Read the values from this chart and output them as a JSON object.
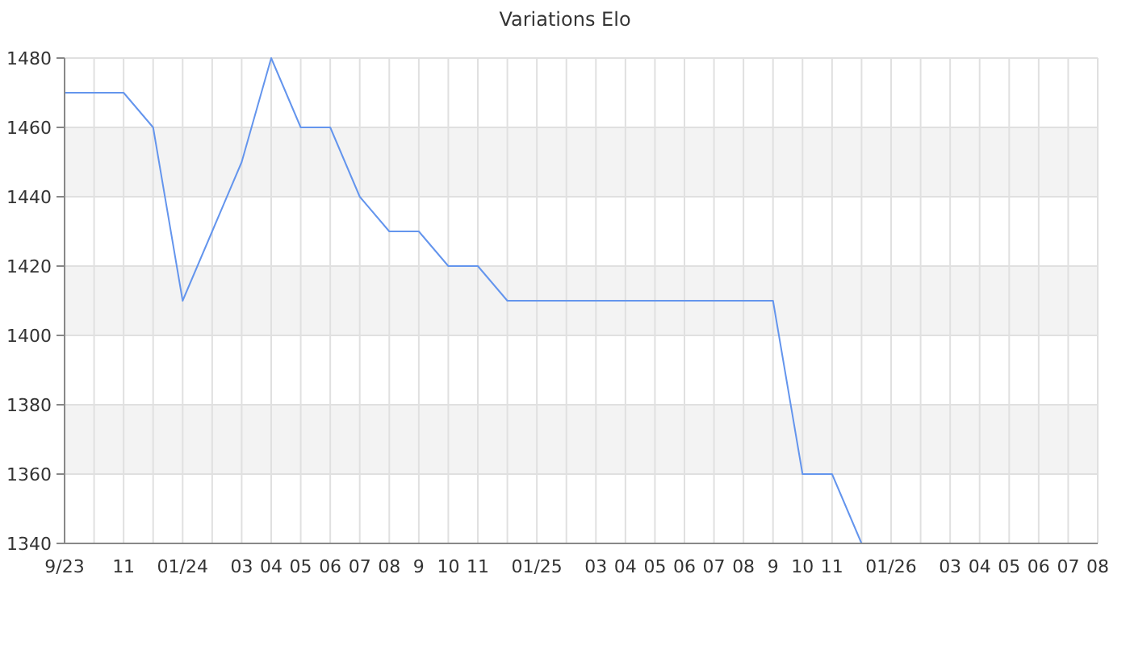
{
  "chart_data": {
    "type": "line",
    "title": "Variations Elo",
    "categories": [
      "9/23",
      null,
      "11",
      null,
      "01/24",
      null,
      "03",
      "04",
      "05",
      "06",
      "07",
      "08",
      "9",
      "10",
      "11",
      null,
      "01/25",
      null,
      "03",
      "04",
      "05",
      "06",
      "07",
      "08",
      "9",
      "10",
      "11",
      null,
      "01/26",
      null,
      "03",
      "04",
      "05",
      "06",
      "07",
      "08"
    ],
    "series": [
      {
        "color": "#6495ed",
        "values": [
          1470,
          1470,
          1470,
          1460,
          1410,
          1430,
          1450,
          1480,
          1460,
          1460,
          1440,
          1430,
          1430,
          1420,
          1420,
          1410,
          1410,
          1410,
          1410,
          1410,
          1410,
          1410,
          1410,
          1410,
          1410,
          1360,
          1360,
          1340,
          null,
          null,
          null,
          null,
          null,
          null,
          null,
          null
        ]
      }
    ],
    "ylim": [
      1340,
      1480
    ],
    "yticks": [
      1340,
      1360,
      1380,
      1400,
      1420,
      1440,
      1460,
      1480
    ],
    "grid": true,
    "marker": "none",
    "line_style": "solid"
  }
}
